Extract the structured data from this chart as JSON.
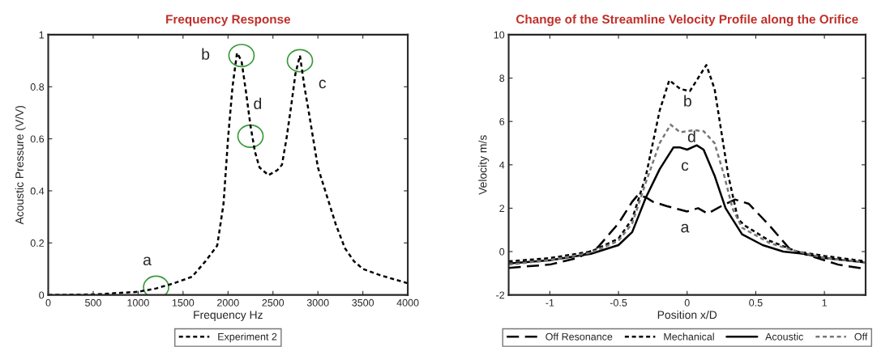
{
  "chart_data": [
    {
      "type": "line",
      "title": "Frequency Response",
      "xlabel": "Frequency Hz",
      "ylabel": "Acoustic Pressure (V/V)",
      "xlim": [
        0,
        4000
      ],
      "ylim": [
        0,
        1
      ],
      "xticks": [
        0,
        500,
        1000,
        1500,
        2000,
        2500,
        3000,
        3500,
        4000
      ],
      "yticks": [
        0,
        0.2,
        0.4,
        0.6,
        0.8,
        1
      ],
      "grid": false,
      "legend": "bottom",
      "line_style": "dotted",
      "x": [
        0,
        500,
        1000,
        1200,
        1400,
        1600,
        1750,
        1880,
        1950,
        2000,
        2050,
        2100,
        2150,
        2200,
        2250,
        2300,
        2350,
        2450,
        2550,
        2600,
        2650,
        2700,
        2750,
        2800,
        2850,
        2900,
        3000,
        3100,
        3200,
        3300,
        3400,
        3500,
        3700,
        4000
      ],
      "series": [
        {
          "name": "Experiment 2",
          "color": "#000000",
          "values": [
            0,
            0.002,
            0.012,
            0.025,
            0.045,
            0.07,
            0.13,
            0.19,
            0.35,
            0.6,
            0.8,
            0.93,
            0.9,
            0.78,
            0.65,
            0.55,
            0.49,
            0.46,
            0.48,
            0.5,
            0.6,
            0.72,
            0.85,
            0.92,
            0.8,
            0.7,
            0.49,
            0.38,
            0.27,
            0.18,
            0.13,
            0.1,
            0.075,
            0.045
          ]
        }
      ],
      "annotations": [
        {
          "text": "a",
          "x": 1200,
          "y": 0.03
        },
        {
          "text": "b",
          "x": 2150,
          "y": 0.92
        },
        {
          "text": "c",
          "x": 2800,
          "y": 0.9
        },
        {
          "text": "d",
          "x": 2250,
          "y": 0.61
        }
      ]
    },
    {
      "type": "line",
      "title": "Change of the Streamline Velocity Profile along the Orifice",
      "xlabel": "Position x/D",
      "ylabel": "Velocity m/s",
      "xlim": [
        -1.3,
        1.3
      ],
      "ylim": [
        -2,
        10
      ],
      "xticks": [
        -1,
        -0.5,
        0,
        0.5,
        1
      ],
      "yticks": [
        -2,
        0,
        2,
        4,
        6,
        8,
        10
      ],
      "grid": false,
      "legend": "bottom",
      "series": [
        {
          "name": "Off Resonance",
          "color": "#000000",
          "line_style": "dashed",
          "x": [
            -1.3,
            -1,
            -0.8,
            -0.65,
            -0.5,
            -0.4,
            -0.36,
            -0.3,
            -0.25,
            -0.15,
            0,
            0.08,
            0.15,
            0.25,
            0.35,
            0.45,
            0.6,
            0.75,
            1.0,
            1.1,
            1.3
          ],
          "values": [
            -0.75,
            -0.6,
            -0.3,
            0.2,
            1.3,
            2.3,
            2.6,
            2.5,
            2.3,
            2.1,
            1.85,
            2.0,
            1.75,
            2.1,
            2.4,
            2.2,
            1.2,
            0.1,
            -0.4,
            -0.6,
            -0.8
          ]
        },
        {
          "name": "Mechanical",
          "color": "#000000",
          "line_style": "dotted",
          "x": [
            -1.3,
            -1,
            -0.7,
            -0.5,
            -0.4,
            -0.3,
            -0.2,
            -0.13,
            -0.05,
            0.02,
            0.08,
            0.14,
            0.2,
            0.25,
            0.3,
            0.37,
            0.42,
            0.6,
            0.8,
            1.0,
            1.3
          ],
          "values": [
            -0.45,
            -0.3,
            0.0,
            0.6,
            1.5,
            3.5,
            6.5,
            7.9,
            7.5,
            7.4,
            8.0,
            8.6,
            7.5,
            5.5,
            3.5,
            1.5,
            1.2,
            0.5,
            0.0,
            -0.2,
            -0.45
          ]
        },
        {
          "name": "Acoustic",
          "color": "#000000",
          "line_style": "solid",
          "x": [
            -1.3,
            -1,
            -0.7,
            -0.5,
            -0.4,
            -0.3,
            -0.2,
            -0.1,
            -0.05,
            0,
            0.07,
            0.12,
            0.2,
            0.28,
            0.4,
            0.55,
            0.7,
            0.85,
            1.0,
            1.3
          ],
          "values": [
            -0.55,
            -0.4,
            -0.1,
            0.3,
            0.9,
            2.5,
            3.8,
            4.8,
            4.8,
            4.7,
            4.9,
            4.7,
            3.5,
            2.0,
            0.8,
            0.3,
            0.0,
            -0.1,
            -0.3,
            -0.5
          ]
        },
        {
          "name": "Off",
          "color": "#777777",
          "line_style": "dotted",
          "x": [
            -1.3,
            -1,
            -0.7,
            -0.5,
            -0.4,
            -0.3,
            -0.2,
            -0.12,
            -0.05,
            0.05,
            0.12,
            0.2,
            0.27,
            0.33,
            0.4,
            0.6,
            0.75,
            1.0,
            1.3
          ],
          "values": [
            -0.6,
            -0.4,
            -0.05,
            0.5,
            1.3,
            3.2,
            5.0,
            5.85,
            5.5,
            5.6,
            5.55,
            5.0,
            3.5,
            2.0,
            1.1,
            0.4,
            0.1,
            -0.3,
            -0.5
          ]
        }
      ],
      "annotations": [
        {
          "text": "b",
          "x": 0.02,
          "y": 7.4
        },
        {
          "text": "d",
          "x": 0.05,
          "y": 5.6
        },
        {
          "text": "c",
          "x": 0,
          "y": 4.7
        },
        {
          "text": "a",
          "x": 0,
          "y": 1.85
        }
      ]
    }
  ]
}
